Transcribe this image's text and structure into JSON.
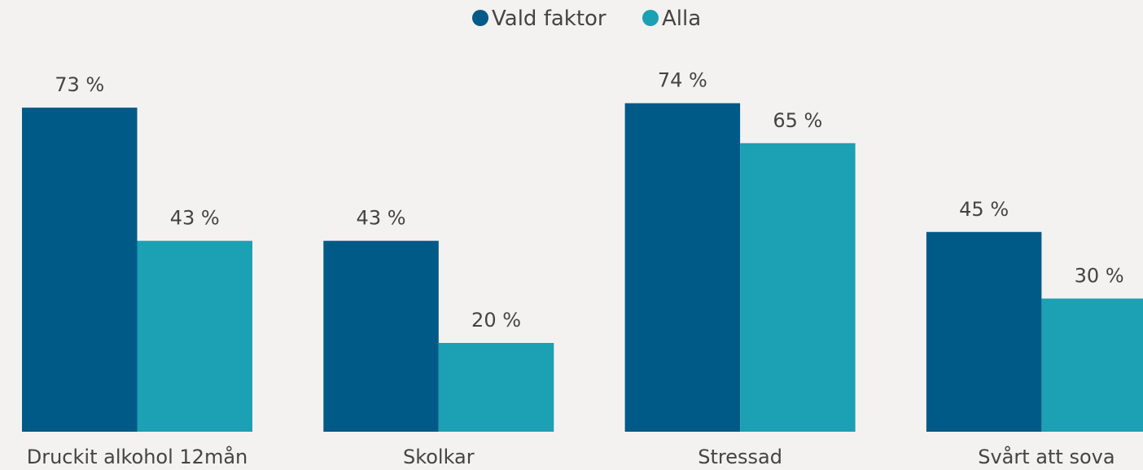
{
  "chart_data": {
    "type": "bar",
    "categories": [
      "Druckit alkohol 12mån",
      "Skolkar",
      "Stressad",
      "Svårt att sova"
    ],
    "series": [
      {
        "name": "Vald faktor",
        "color": "#005a87",
        "values": [
          73,
          43,
          74,
          45
        ],
        "value_labels": [
          "73 %",
          "43 %",
          "74 %",
          "45 %"
        ]
      },
      {
        "name": "Alla",
        "color": "#1ca0b4",
        "values": [
          43,
          20,
          65,
          30
        ],
        "value_labels": [
          "43 %",
          "20 %",
          "65 %",
          "30 %"
        ]
      }
    ],
    "legend": "top"
  }
}
